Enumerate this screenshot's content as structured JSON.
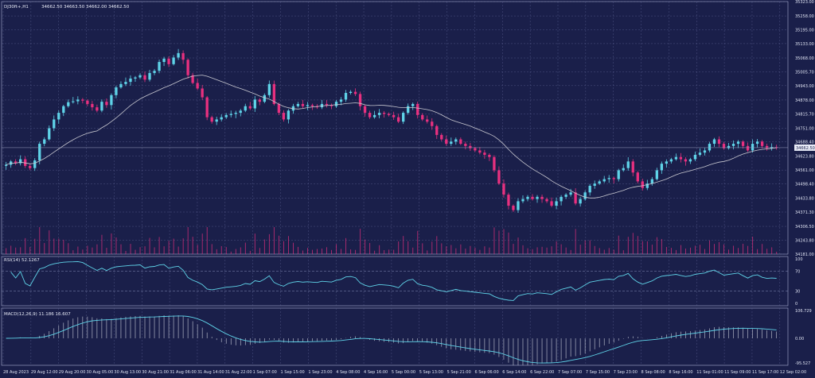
{
  "header": {
    "symbol": "DJ30ft+,H1",
    "ohlc": "34662.50 34663.50 34662.00 34662.50",
    "rsi_label": "RSI(14) 52.1267",
    "macd_label": "MACD(12,26,9) 11.186 16.607"
  },
  "colors": {
    "background": "#1a1f4a",
    "grid": "#5a6090",
    "bull": "#5fd3e8",
    "bear": "#e8307f",
    "ma": "#c8c8d0",
    "rsi_line": "#5fd3e8",
    "macd_line": "#5fd3e8"
  },
  "chart_data": [
    {
      "type": "candlestick",
      "panel": "price",
      "timeframe": "H1",
      "ylim": [
        34181.0,
        35323.0
      ],
      "y_ticks": [
        "35323.00",
        "35258.00",
        "35195.00",
        "35133.00",
        "35068.00",
        "35005.70",
        "34943.00",
        "34878.00",
        "34815.70",
        "34751.00",
        "34688.40",
        "34623.80",
        "34561.00",
        "34498.40",
        "34433.80",
        "34371.30",
        "34306.50",
        "34243.80",
        "34181.00"
      ],
      "x_ticks": [
        "28 Aug 2023",
        "29 Aug 12:00",
        "29 Aug 20:00",
        "30 Aug 05:00",
        "30 Aug 13:00",
        "30 Aug 21:00",
        "31 Aug 06:00",
        "31 Aug 14:00",
        "31 Aug 22:00",
        "1 Sep 07:00",
        "1 Sep 15:00",
        "1 Sep 23:00",
        "4 Sep 08:00",
        "4 Sep 16:00",
        "5 Sep 00:00",
        "5 Sep 13:00",
        "5 Sep 21:00",
        "6 Sep 06:00",
        "6 Sep 14:00",
        "6 Sep 22:00",
        "7 Sep 07:00",
        "7 Sep 15:00",
        "7 Sep 23:00",
        "8 Sep 08:00",
        "8 Sep 16:00",
        "11 Sep 01:00",
        "11 Sep 09:00",
        "11 Sep 17:00",
        "12 Sep 02:00"
      ],
      "current_price": "34662.50",
      "close": [
        34585,
        34600,
        34592,
        34610,
        34580,
        34570,
        34605,
        34680,
        34700,
        34750,
        34790,
        34820,
        34850,
        34868,
        34872,
        34880,
        34875,
        34860,
        34845,
        34830,
        34870,
        34855,
        34900,
        34935,
        34950,
        34960,
        34975,
        34980,
        34990,
        34970,
        35000,
        35010,
        35050,
        35065,
        35040,
        35070,
        35090,
        35060,
        34990,
        34955,
        34930,
        34890,
        34800,
        34780,
        34790,
        34800,
        34810,
        34815,
        34820,
        34830,
        34850,
        34840,
        34880,
        34870,
        34900,
        34950,
        34860,
        34820,
        34790,
        34830,
        34850,
        34860,
        34850,
        34855,
        34850,
        34845,
        34860,
        34855,
        34850,
        34870,
        34880,
        34910,
        34915,
        34905,
        34850,
        34820,
        34800,
        34810,
        34820,
        34815,
        34810,
        34800,
        34780,
        34820,
        34850,
        34860,
        34810,
        34790,
        34780,
        34760,
        34720,
        34700,
        34680,
        34690,
        34700,
        34680,
        34670,
        34660,
        34650,
        34640,
        34630,
        34620,
        34560,
        34500,
        34450,
        34400,
        34380,
        34420,
        34430,
        34440,
        34430,
        34440,
        34430,
        34420,
        34400,
        34420,
        34440,
        34450,
        34460,
        34410,
        34430,
        34460,
        34490,
        34500,
        34510,
        34520,
        34525,
        34520,
        34560,
        34570,
        34600,
        34550,
        34510,
        34480,
        34500,
        34520,
        34560,
        34590,
        34600,
        34610,
        34620,
        34610,
        34600,
        34610,
        34630,
        34640,
        34650,
        34680,
        34700,
        34680,
        34660,
        34670,
        34680,
        34690,
        34670,
        34650,
        34680,
        34690,
        34670,
        34660,
        34665,
        34662
      ]
    },
    {
      "type": "line",
      "panel": "price",
      "series": [
        {
          "name": "",
          "kind": "moving_average",
          "approximate": true
        }
      ]
    },
    {
      "type": "bar",
      "panel": "price",
      "series": [
        {
          "name": "",
          "kind": "tick_volume"
        }
      ]
    },
    {
      "type": "line",
      "panel": "rsi",
      "title": "RSI(14) 52.1267",
      "ylim": [
        0,
        100
      ],
      "y_ticks": [
        "100",
        "70",
        "30",
        "0"
      ],
      "levels": [
        70,
        30
      ],
      "series": [
        {
          "name": "RSI",
          "value_last": 52.1267
        }
      ]
    },
    {
      "type": "line",
      "panel": "macd",
      "title": "MACD(12,26,9) 11.186 16.607",
      "ylim": [
        -95.527,
        106.729
      ],
      "y_ticks": [
        "106.729",
        "0.00",
        "-95.527"
      ],
      "series": [
        {
          "name": "MACD",
          "kind": "histogram",
          "value_last": 11.186
        },
        {
          "name": "Signal",
          "kind": "line",
          "value_last": 16.607
        }
      ]
    }
  ]
}
